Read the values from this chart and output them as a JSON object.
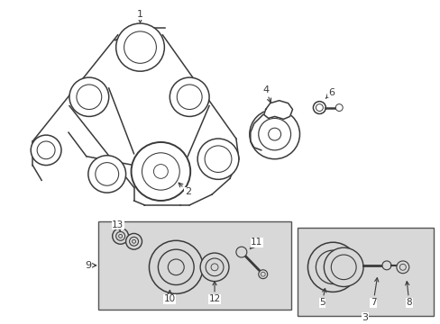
{
  "bg_color": "#ffffff",
  "line_color": "#3a3a3a",
  "box_fill": "#dcdcdc",
  "figsize": [
    4.89,
    3.6
  ],
  "dpi": 100,
  "belt_color": "#3a3a3a",
  "pulley_lw": 1.1
}
